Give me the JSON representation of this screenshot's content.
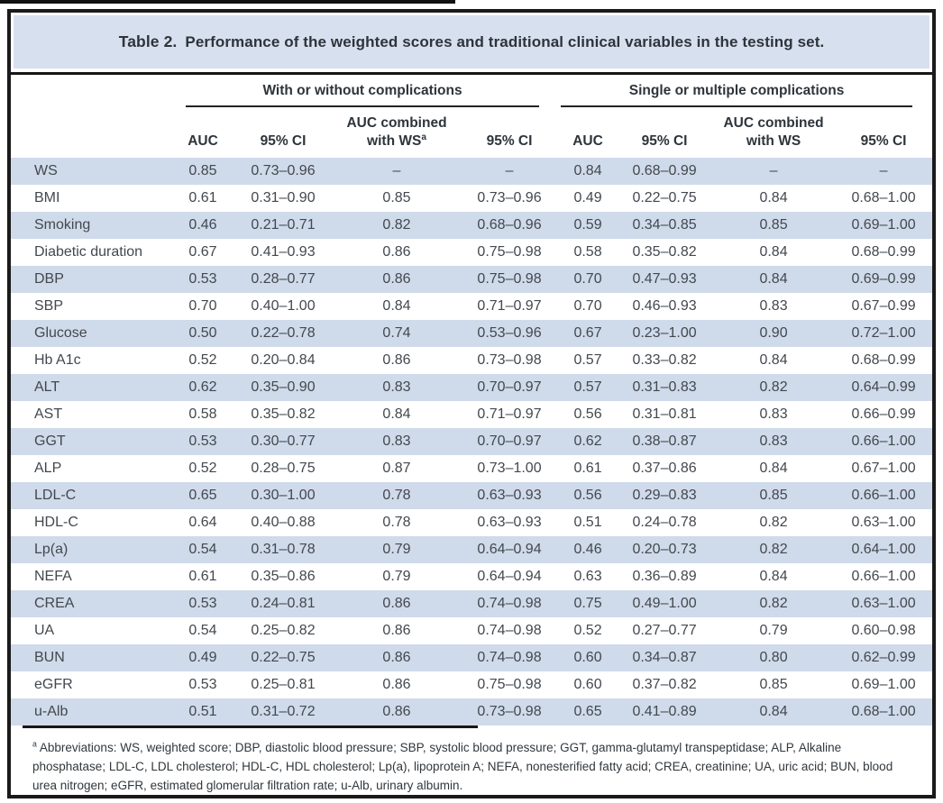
{
  "title": {
    "label": "Table 2.",
    "caption": "Performance of the weighted scores and traditional clinical variables in the testing set."
  },
  "groups": [
    {
      "label": "With or without complications"
    },
    {
      "label": "Single or multiple complications"
    }
  ],
  "columns": {
    "auc": "AUC",
    "ci": "95% CI",
    "combined_line1": "AUC combined",
    "combined_line2": "with WS",
    "superscript_marker": "a"
  },
  "chart_data": {
    "type": "table",
    "title": "Table 2. Performance of the weighted scores and traditional clinical variables in the testing set.",
    "column_groups": [
      "With or without complications",
      "Single or multiple complications"
    ],
    "column_headers": [
      "AUC",
      "95% CI",
      "AUC combined with WSa",
      "95% CI",
      "AUC",
      "95% CI",
      "AUC combined with WS",
      "95% CI"
    ]
  },
  "rows": [
    {
      "name": "WS",
      "values": [
        "0.85",
        "0.73–0.96",
        "–",
        "–",
        "0.84",
        "0.68–0.99",
        "–",
        "–"
      ]
    },
    {
      "name": "BMI",
      "values": [
        "0.61",
        "0.31–0.90",
        "0.85",
        "0.73–0.96",
        "0.49",
        "0.22–0.75",
        "0.84",
        "0.68–1.00"
      ]
    },
    {
      "name": "Smoking",
      "values": [
        "0.46",
        "0.21–0.71",
        "0.82",
        "0.68–0.96",
        "0.59",
        "0.34–0.85",
        "0.85",
        "0.69–1.00"
      ]
    },
    {
      "name": "Diabetic duration",
      "values": [
        "0.67",
        "0.41–0.93",
        "0.86",
        "0.75–0.98",
        "0.58",
        "0.35–0.82",
        "0.84",
        "0.68–0.99"
      ]
    },
    {
      "name": "DBP",
      "values": [
        "0.53",
        "0.28–0.77",
        "0.86",
        "0.75–0.98",
        "0.70",
        "0.47–0.93",
        "0.84",
        "0.69–0.99"
      ]
    },
    {
      "name": "SBP",
      "values": [
        "0.70",
        "0.40–1.00",
        "0.84",
        "0.71–0.97",
        "0.70",
        "0.46–0.93",
        "0.83",
        "0.67–0.99"
      ]
    },
    {
      "name": "Glucose",
      "values": [
        "0.50",
        "0.22–0.78",
        "0.74",
        "0.53–0.96",
        "0.67",
        "0.23–1.00",
        "0.90",
        "0.72–1.00"
      ]
    },
    {
      "name": "Hb A1c",
      "values": [
        "0.52",
        "0.20–0.84",
        "0.86",
        "0.73–0.98",
        "0.57",
        "0.33–0.82",
        "0.84",
        "0.68–0.99"
      ]
    },
    {
      "name": "ALT",
      "values": [
        "0.62",
        "0.35–0.90",
        "0.83",
        "0.70–0.97",
        "0.57",
        "0.31–0.83",
        "0.82",
        "0.64–0.99"
      ]
    },
    {
      "name": "AST",
      "values": [
        "0.58",
        "0.35–0.82",
        "0.84",
        "0.71–0.97",
        "0.56",
        "0.31–0.81",
        "0.83",
        "0.66–0.99"
      ]
    },
    {
      "name": "GGT",
      "values": [
        "0.53",
        "0.30–0.77",
        "0.83",
        "0.70–0.97",
        "0.62",
        "0.38–0.87",
        "0.83",
        "0.66–1.00"
      ]
    },
    {
      "name": "ALP",
      "values": [
        "0.52",
        "0.28–0.75",
        "0.87",
        "0.73–1.00",
        "0.61",
        "0.37–0.86",
        "0.84",
        "0.67–1.00"
      ]
    },
    {
      "name": "LDL-C",
      "values": [
        "0.65",
        "0.30–1.00",
        "0.78",
        "0.63–0.93",
        "0.56",
        "0.29–0.83",
        "0.85",
        "0.66–1.00"
      ]
    },
    {
      "name": "HDL-C",
      "values": [
        "0.64",
        "0.40–0.88",
        "0.78",
        "0.63–0.93",
        "0.51",
        "0.24–0.78",
        "0.82",
        "0.63–1.00"
      ]
    },
    {
      "name": "Lp(a)",
      "values": [
        "0.54",
        "0.31–0.78",
        "0.79",
        "0.64–0.94",
        "0.46",
        "0.20–0.73",
        "0.82",
        "0.64–1.00"
      ]
    },
    {
      "name": "NEFA",
      "values": [
        "0.61",
        "0.35–0.86",
        "0.79",
        "0.64–0.94",
        "0.63",
        "0.36–0.89",
        "0.84",
        "0.66–1.00"
      ]
    },
    {
      "name": "CREA",
      "values": [
        "0.53",
        "0.24–0.81",
        "0.86",
        "0.74–0.98",
        "0.75",
        "0.49–1.00",
        "0.82",
        "0.63–1.00"
      ]
    },
    {
      "name": "UA",
      "values": [
        "0.54",
        "0.25–0.82",
        "0.86",
        "0.74–0.98",
        "0.52",
        "0.27–0.77",
        "0.79",
        "0.60–0.98"
      ]
    },
    {
      "name": "BUN",
      "values": [
        "0.49",
        "0.22–0.75",
        "0.86",
        "0.74–0.98",
        "0.60",
        "0.34–0.87",
        "0.80",
        "0.62–0.99"
      ]
    },
    {
      "name": "eGFR",
      "values": [
        "0.53",
        "0.25–0.81",
        "0.86",
        "0.75–0.98",
        "0.60",
        "0.37–0.82",
        "0.85",
        "0.69–1.00"
      ]
    },
    {
      "name": "u-Alb",
      "values": [
        "0.51",
        "0.31–0.72",
        "0.86",
        "0.73–0.98",
        "0.65",
        "0.41–0.89",
        "0.84",
        "0.68–1.00"
      ]
    }
  ],
  "footnote": {
    "marker": "a",
    "text": " Abbreviations: WS, weighted score; DBP, diastolic blood pressure; SBP, systolic blood pressure; GGT, gamma-glutamyl transpeptidase; ALP, Alkaline phosphatase; LDL-C, LDL cholesterol; HDL-C, HDL cholesterol; Lp(a), lipoprotein A; NEFA, nonesterified fatty acid; CREA, creatinine; UA, uric acid; BUN, blood urea nitrogen; eGFR, estimated glomerular filtration rate; u-Alb, urinary albumin."
  },
  "colors": {
    "row_stripe": "#cfdaea",
    "title_bar": "#d7e0ef",
    "outer_border": "#1a1a1a"
  }
}
